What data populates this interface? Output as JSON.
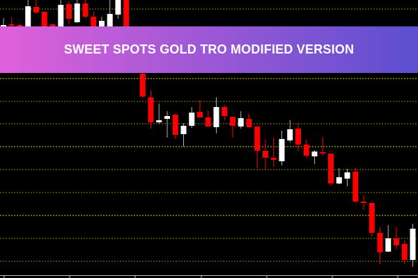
{
  "banner": {
    "title": "SWEET SPOTS GOLD TRO MODIFIED VERSION"
  },
  "colors": {
    "bull": "#ffffff",
    "bear": "#ff0000",
    "grid": "#e6e600",
    "background": "#000000",
    "axis": "#c0c0c0",
    "banner_start": "#e060da",
    "banner_end": "#5b4fd0"
  },
  "chart_data": {
    "type": "candlestick",
    "title": "",
    "xlabel": "",
    "ylabel": "",
    "grid": true,
    "grid_style": "dotted horizontal",
    "ylim": [
      16,
      400
    ],
    "candles": [
      {
        "o": 362,
        "h": 374,
        "l": 362,
        "c": 364
      },
      {
        "o": 365,
        "h": 375,
        "l": 362,
        "c": 363
      },
      {
        "o": 364,
        "h": 366,
        "l": 362,
        "c": 362
      },
      {
        "o": 362,
        "h": 400,
        "l": 362,
        "c": 391
      },
      {
        "o": 390,
        "h": 400,
        "l": 380,
        "c": 382
      },
      {
        "o": 383,
        "h": 384,
        "l": 362,
        "c": 362
      },
      {
        "o": 365,
        "h": 366,
        "l": 362,
        "c": 362
      },
      {
        "o": 362,
        "h": 400,
        "l": 362,
        "c": 393
      },
      {
        "o": 394,
        "h": 398,
        "l": 365,
        "c": 373
      },
      {
        "o": 368,
        "h": 400,
        "l": 367,
        "c": 395
      },
      {
        "o": 395,
        "h": 400,
        "l": 374,
        "c": 376
      },
      {
        "o": 376,
        "h": 384,
        "l": 362,
        "c": 362
      },
      {
        "o": 362,
        "h": 376,
        "l": 362,
        "c": 370
      },
      {
        "o": 362,
        "h": 400,
        "l": 362,
        "c": 380
      },
      {
        "o": 379,
        "h": 400,
        "l": 373,
        "c": 400
      },
      {
        "o": 400,
        "h": 400,
        "l": 362,
        "c": 362
      },
      {
        "o": 294,
        "h": 296,
        "l": 259,
        "c": 261
      },
      {
        "o": 260,
        "h": 270,
        "l": 215,
        "c": 224
      },
      {
        "o": 224,
        "h": 251,
        "l": 222,
        "c": 227
      },
      {
        "o": 229,
        "h": 240,
        "l": 202,
        "c": 233
      },
      {
        "o": 235,
        "h": 236,
        "l": 200,
        "c": 206
      },
      {
        "o": 207,
        "h": 223,
        "l": 189,
        "c": 219
      },
      {
        "o": 219,
        "h": 246,
        "l": 216,
        "c": 238
      },
      {
        "o": 239,
        "h": 256,
        "l": 231,
        "c": 231
      },
      {
        "o": 231,
        "h": 241,
        "l": 218,
        "c": 218
      },
      {
        "o": 217,
        "h": 260,
        "l": 208,
        "c": 246
      },
      {
        "o": 246,
        "h": 249,
        "l": 227,
        "c": 233
      },
      {
        "o": 232,
        "h": 232,
        "l": 202,
        "c": 219
      },
      {
        "o": 218,
        "h": 240,
        "l": 215,
        "c": 230
      },
      {
        "o": 229,
        "h": 236,
        "l": 217,
        "c": 217
      },
      {
        "o": 218,
        "h": 218,
        "l": 158,
        "c": 183
      },
      {
        "o": 183,
        "h": 199,
        "l": 155,
        "c": 173
      },
      {
        "o": 173,
        "h": 202,
        "l": 160,
        "c": 170
      },
      {
        "o": 168,
        "h": 212,
        "l": 162,
        "c": 200
      },
      {
        "o": 198,
        "h": 227,
        "l": 195,
        "c": 214
      },
      {
        "o": 215,
        "h": 223,
        "l": 183,
        "c": 192
      },
      {
        "o": 192,
        "h": 199,
        "l": 173,
        "c": 176
      },
      {
        "o": 175,
        "h": 184,
        "l": 164,
        "c": 182
      },
      {
        "o": 181,
        "h": 203,
        "l": 176,
        "c": 179
      },
      {
        "o": 179,
        "h": 179,
        "l": 133,
        "c": 136
      },
      {
        "o": 136,
        "h": 158,
        "l": 135,
        "c": 145
      },
      {
        "o": 143,
        "h": 157,
        "l": 132,
        "c": 152
      },
      {
        "o": 153,
        "h": 158,
        "l": 108,
        "c": 110
      },
      {
        "o": 110,
        "h": 119,
        "l": 98,
        "c": 108
      },
      {
        "o": 108,
        "h": 108,
        "l": 60,
        "c": 65
      },
      {
        "o": 65,
        "h": 73,
        "l": 20,
        "c": 37
      },
      {
        "o": 38,
        "h": 76,
        "l": 37,
        "c": 57
      },
      {
        "o": 57,
        "h": 73,
        "l": 41,
        "c": 47
      },
      {
        "o": 49,
        "h": 54,
        "l": 20,
        "c": 26
      },
      {
        "o": 26,
        "h": 78,
        "l": 16,
        "c": 71
      }
    ]
  }
}
